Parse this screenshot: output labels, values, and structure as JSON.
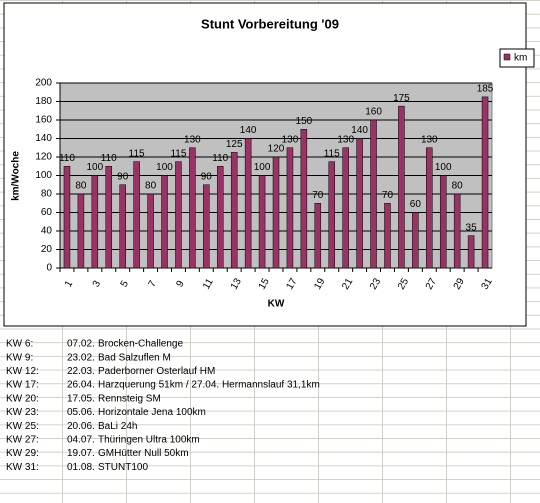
{
  "chart_data": {
    "type": "bar",
    "title": "Stunt Vorbereitung '09",
    "x_label": "KW",
    "y_label": "km/Woche",
    "categories": [
      1,
      null,
      3,
      null,
      5,
      null,
      7,
      null,
      9,
      null,
      11,
      null,
      13,
      null,
      15,
      null,
      17,
      null,
      19,
      null,
      21,
      null,
      23,
      null,
      25,
      null,
      27,
      null,
      29,
      null,
      31
    ],
    "series": [
      {
        "name": "km",
        "color": "#993366",
        "values": [
          110,
          80,
          100,
          110,
          90,
          115,
          80,
          100,
          115,
          130,
          90,
          110,
          125,
          140,
          100,
          120,
          130,
          150,
          70,
          115,
          130,
          140,
          160,
          70,
          175,
          60,
          130,
          100,
          80,
          35,
          185
        ]
      }
    ],
    "ylim": [
      0,
      200
    ],
    "yticks": [
      0,
      20,
      40,
      60,
      80,
      100,
      120,
      140,
      160,
      180,
      200
    ],
    "grid": true,
    "legend": "right"
  },
  "events": [
    {
      "kw": "KW 6:",
      "date": "07.02.",
      "text": "Brocken-Challenge"
    },
    {
      "kw": "KW 9:",
      "date": "23.02.",
      "text": "Bad Salzuflen M"
    },
    {
      "kw": "KW 12:",
      "date": "22.03.",
      "text": "Paderborner Osterlauf HM"
    },
    {
      "kw": "KW 17:",
      "date": "26.04.",
      "text": "Harzquerung 51km / 27.04. Hermannslauf 31,1km"
    },
    {
      "kw": "KW 20:",
      "date": "17.05.",
      "text": "Rennsteig SM"
    },
    {
      "kw": "KW 23:",
      "date": "05.06.",
      "text": "Horizontale Jena 100km"
    },
    {
      "kw": "KW 25:",
      "date": "20.06.",
      "text": "BaLi 24h"
    },
    {
      "kw": "KW 27:",
      "date": "04.07.",
      "text": "Thüringen Ultra 100km"
    },
    {
      "kw": "KW 29:",
      "date": "19.07.",
      "text": "GMHütter Null 50km"
    },
    {
      "kw": "KW 31:",
      "date": "01.08.",
      "text": "STUNT100"
    }
  ]
}
